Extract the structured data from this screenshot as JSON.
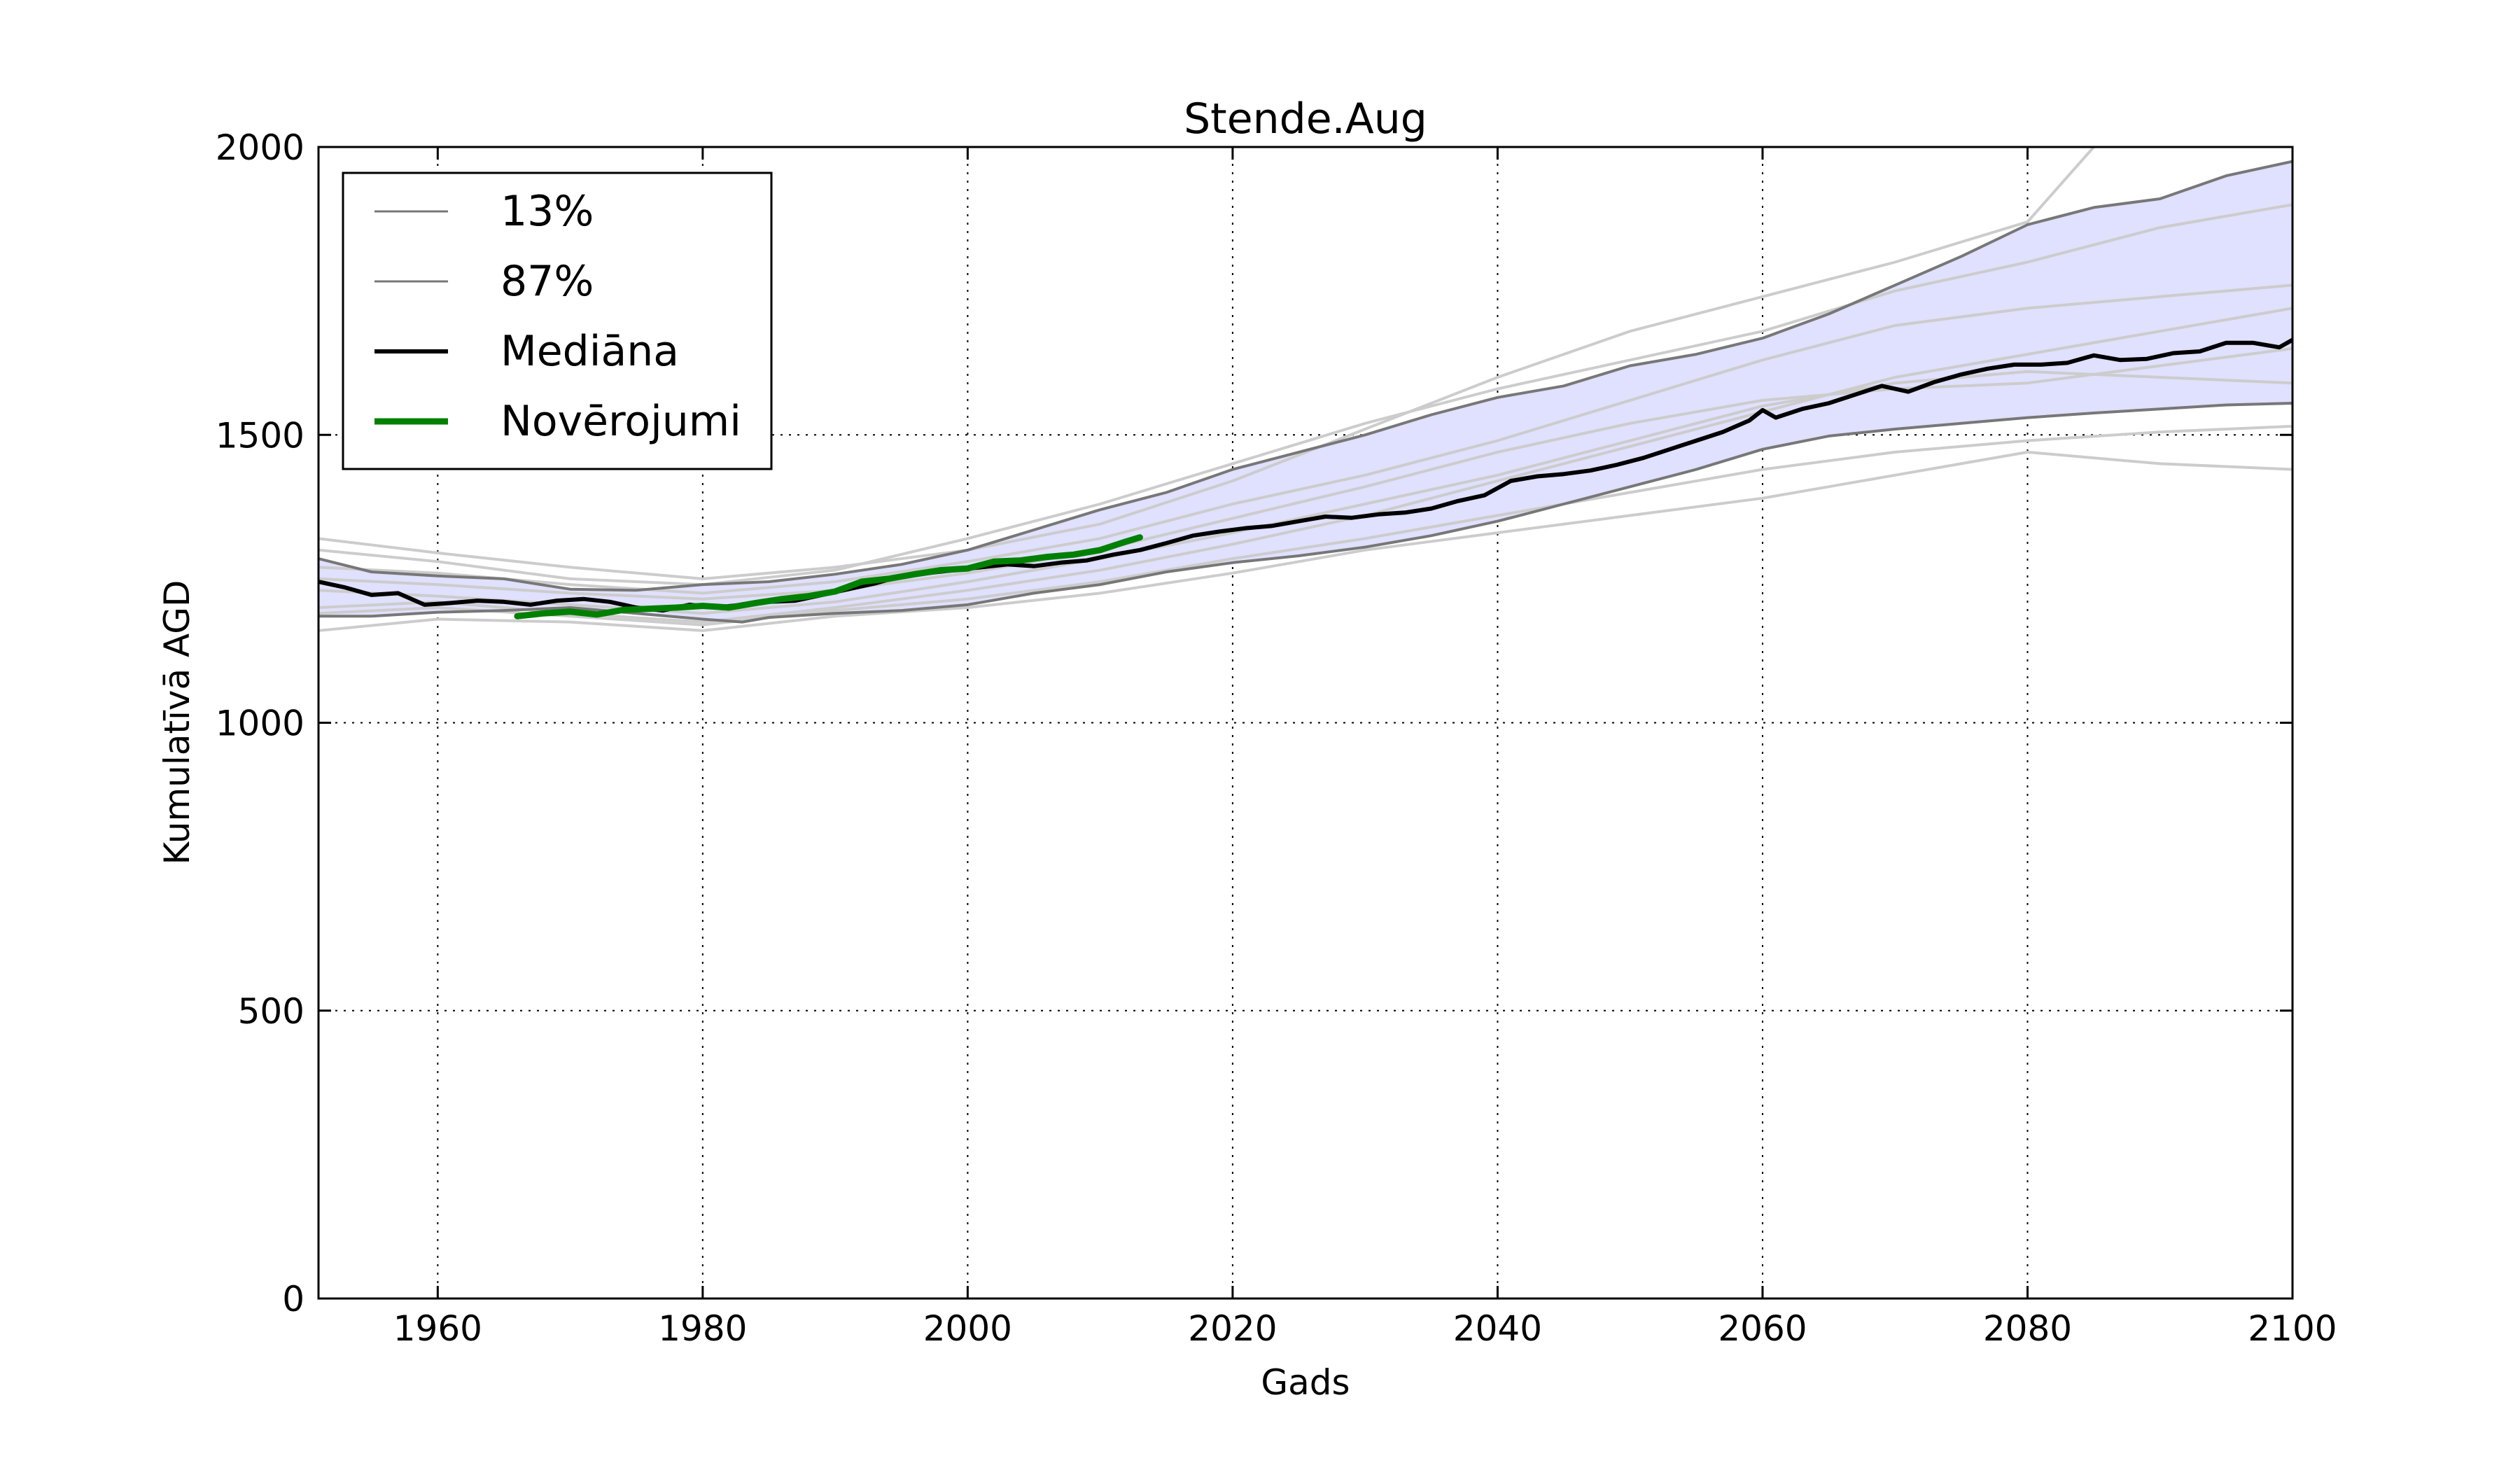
{
  "chart_data": {
    "type": "line",
    "title": "Stende.Aug",
    "xlabel": "Gads",
    "ylabel": "Kumulatīvā AGD",
    "xlim": [
      1951,
      2100
    ],
    "ylim": [
      0,
      2000
    ],
    "x_ticks": [
      1960,
      1980,
      2000,
      2020,
      2040,
      2060,
      2080,
      2100
    ],
    "y_ticks": [
      0,
      500,
      1000,
      1500,
      2000
    ],
    "grid": true,
    "legend_position": "upper-left",
    "band_color": "#e0e0ff",
    "series": [
      {
        "name": "13%",
        "color": "#777777",
        "points": [
          [
            1951,
            1185
          ],
          [
            1955,
            1185
          ],
          [
            1960,
            1192
          ],
          [
            1965,
            1195
          ],
          [
            1970,
            1200
          ],
          [
            1975,
            1190
          ],
          [
            1980,
            1180
          ],
          [
            1983,
            1175
          ],
          [
            1985,
            1183
          ],
          [
            1990,
            1190
          ],
          [
            1995,
            1195
          ],
          [
            2000,
            1205
          ],
          [
            2005,
            1225
          ],
          [
            2010,
            1240
          ],
          [
            2015,
            1262
          ],
          [
            2020,
            1278
          ],
          [
            2025,
            1290
          ],
          [
            2030,
            1305
          ],
          [
            2035,
            1325
          ],
          [
            2040,
            1350
          ],
          [
            2045,
            1380
          ],
          [
            2050,
            1410
          ],
          [
            2055,
            1440
          ],
          [
            2060,
            1475
          ],
          [
            2065,
            1498
          ],
          [
            2070,
            1510
          ],
          [
            2075,
            1520
          ],
          [
            2080,
            1530
          ],
          [
            2085,
            1538
          ],
          [
            2090,
            1545
          ],
          [
            2095,
            1552
          ],
          [
            2100,
            1555
          ]
        ]
      },
      {
        "name": "87%",
        "color": "#777777",
        "points": [
          [
            1951,
            1285
          ],
          [
            1955,
            1262
          ],
          [
            1960,
            1255
          ],
          [
            1965,
            1250
          ],
          [
            1970,
            1232
          ],
          [
            1975,
            1230
          ],
          [
            1980,
            1240
          ],
          [
            1985,
            1245
          ],
          [
            1990,
            1258
          ],
          [
            1995,
            1275
          ],
          [
            2000,
            1300
          ],
          [
            2005,
            1335
          ],
          [
            2010,
            1370
          ],
          [
            2015,
            1400
          ],
          [
            2020,
            1440
          ],
          [
            2025,
            1470
          ],
          [
            2030,
            1500
          ],
          [
            2035,
            1535
          ],
          [
            2040,
            1565
          ],
          [
            2045,
            1585
          ],
          [
            2050,
            1620
          ],
          [
            2055,
            1640
          ],
          [
            2060,
            1668
          ],
          [
            2065,
            1710
          ],
          [
            2070,
            1760
          ],
          [
            2075,
            1810
          ],
          [
            2080,
            1865
          ],
          [
            2085,
            1895
          ],
          [
            2090,
            1910
          ],
          [
            2095,
            1950
          ],
          [
            2100,
            1975
          ]
        ]
      },
      {
        "name": "Mediāna",
        "color": "#000000",
        "points": [
          [
            1951,
            1245
          ],
          [
            1953,
            1235
          ],
          [
            1955,
            1222
          ],
          [
            1957,
            1225
          ],
          [
            1959,
            1205
          ],
          [
            1961,
            1208
          ],
          [
            1963,
            1212
          ],
          [
            1965,
            1210
          ],
          [
            1967,
            1205
          ],
          [
            1969,
            1212
          ],
          [
            1971,
            1215
          ],
          [
            1973,
            1210
          ],
          [
            1975,
            1200
          ],
          [
            1977,
            1195
          ],
          [
            1979,
            1205
          ],
          [
            1981,
            1200
          ],
          [
            1983,
            1205
          ],
          [
            1985,
            1210
          ],
          [
            1987,
            1212
          ],
          [
            1989,
            1222
          ],
          [
            1991,
            1232
          ],
          [
            1993,
            1242
          ],
          [
            1995,
            1255
          ],
          [
            1997,
            1260
          ],
          [
            1999,
            1265
          ],
          [
            2001,
            1270
          ],
          [
            2003,
            1275
          ],
          [
            2005,
            1272
          ],
          [
            2007,
            1278
          ],
          [
            2009,
            1282
          ],
          [
            2011,
            1292
          ],
          [
            2013,
            1300
          ],
          [
            2015,
            1312
          ],
          [
            2017,
            1325
          ],
          [
            2019,
            1332
          ],
          [
            2021,
            1338
          ],
          [
            2023,
            1342
          ],
          [
            2025,
            1350
          ],
          [
            2027,
            1358
          ],
          [
            2029,
            1356
          ],
          [
            2031,
            1362
          ],
          [
            2033,
            1365
          ],
          [
            2035,
            1372
          ],
          [
            2037,
            1385
          ],
          [
            2039,
            1395
          ],
          [
            2041,
            1420
          ],
          [
            2043,
            1428
          ],
          [
            2045,
            1432
          ],
          [
            2047,
            1438
          ],
          [
            2049,
            1448
          ],
          [
            2051,
            1460
          ],
          [
            2053,
            1475
          ],
          [
            2055,
            1490
          ],
          [
            2057,
            1505
          ],
          [
            2059,
            1525
          ],
          [
            2060,
            1543
          ],
          [
            2061,
            1530
          ],
          [
            2063,
            1545
          ],
          [
            2065,
            1555
          ],
          [
            2067,
            1570
          ],
          [
            2069,
            1585
          ],
          [
            2071,
            1575
          ],
          [
            2073,
            1592
          ],
          [
            2075,
            1605
          ],
          [
            2077,
            1615
          ],
          [
            2079,
            1622
          ],
          [
            2081,
            1622
          ],
          [
            2083,
            1625
          ],
          [
            2085,
            1638
          ],
          [
            2087,
            1630
          ],
          [
            2089,
            1632
          ],
          [
            2091,
            1642
          ],
          [
            2093,
            1645
          ],
          [
            2095,
            1660
          ],
          [
            2097,
            1660
          ],
          [
            2099,
            1652
          ],
          [
            2100,
            1665
          ]
        ]
      },
      {
        "name": "Novērojumi",
        "color": "#008000",
        "points": [
          [
            1966,
            1185
          ],
          [
            1968,
            1190
          ],
          [
            1970,
            1193
          ],
          [
            1972,
            1188
          ],
          [
            1974,
            1196
          ],
          [
            1976,
            1198
          ],
          [
            1978,
            1200
          ],
          [
            1980,
            1203
          ],
          [
            1982,
            1200
          ],
          [
            1984,
            1208
          ],
          [
            1986,
            1215
          ],
          [
            1988,
            1220
          ],
          [
            1990,
            1228
          ],
          [
            1992,
            1245
          ],
          [
            1994,
            1250
          ],
          [
            1996,
            1258
          ],
          [
            1998,
            1265
          ],
          [
            2000,
            1268
          ],
          [
            2002,
            1280
          ],
          [
            2004,
            1282
          ],
          [
            2006,
            1288
          ],
          [
            2008,
            1292
          ],
          [
            2010,
            1300
          ],
          [
            2012,
            1315
          ],
          [
            2013,
            1322
          ]
        ]
      }
    ],
    "ensemble_members": [
      {
        "color": "#cccccc",
        "points": [
          [
            1951,
            1320
          ],
          [
            1960,
            1295
          ],
          [
            1970,
            1270
          ],
          [
            1980,
            1250
          ],
          [
            1990,
            1270
          ],
          [
            2000,
            1300
          ],
          [
            2010,
            1345
          ],
          [
            2020,
            1420
          ],
          [
            2030,
            1510
          ],
          [
            2040,
            1600
          ],
          [
            2050,
            1680
          ],
          [
            2060,
            1740
          ],
          [
            2070,
            1800
          ],
          [
            2080,
            1870
          ],
          [
            2085,
            2000
          ]
        ]
      },
      {
        "color": "#cccccc",
        "points": [
          [
            1951,
            1300
          ],
          [
            1960,
            1280
          ],
          [
            1970,
            1250
          ],
          [
            1980,
            1240
          ],
          [
            1990,
            1265
          ],
          [
            2000,
            1320
          ],
          [
            2010,
            1380
          ],
          [
            2020,
            1450
          ],
          [
            2030,
            1520
          ],
          [
            2040,
            1580
          ],
          [
            2050,
            1630
          ],
          [
            2060,
            1680
          ],
          [
            2070,
            1750
          ],
          [
            2080,
            1800
          ],
          [
            2090,
            1860
          ],
          [
            2100,
            1900
          ]
        ]
      },
      {
        "color": "#cccccc",
        "points": [
          [
            1951,
            1160
          ],
          [
            1960,
            1180
          ],
          [
            1970,
            1175
          ],
          [
            1980,
            1160
          ],
          [
            1990,
            1185
          ],
          [
            2000,
            1200
          ],
          [
            2010,
            1225
          ],
          [
            2020,
            1260
          ],
          [
            2030,
            1300
          ],
          [
            2040,
            1330
          ],
          [
            2050,
            1360
          ],
          [
            2060,
            1390
          ],
          [
            2070,
            1430
          ],
          [
            2080,
            1470
          ],
          [
            2090,
            1450
          ],
          [
            2100,
            1440
          ]
        ]
      },
      {
        "color": "#cccccc",
        "points": [
          [
            1951,
            1200
          ],
          [
            1960,
            1210
          ],
          [
            1970,
            1190
          ],
          [
            1980,
            1175
          ],
          [
            1990,
            1200
          ],
          [
            2000,
            1230
          ],
          [
            2010,
            1265
          ],
          [
            2020,
            1310
          ],
          [
            2030,
            1360
          ],
          [
            2040,
            1420
          ],
          [
            2050,
            1480
          ],
          [
            2060,
            1540
          ],
          [
            2070,
            1600
          ],
          [
            2080,
            1640
          ],
          [
            2090,
            1680
          ],
          [
            2100,
            1720
          ]
        ]
      },
      {
        "color": "#cccccc",
        "points": [
          [
            1951,
            1230
          ],
          [
            1960,
            1220
          ],
          [
            1970,
            1205
          ],
          [
            1980,
            1190
          ],
          [
            1990,
            1210
          ],
          [
            2000,
            1245
          ],
          [
            2010,
            1285
          ],
          [
            2020,
            1330
          ],
          [
            2030,
            1380
          ],
          [
            2040,
            1430
          ],
          [
            2050,
            1490
          ],
          [
            2060,
            1550
          ],
          [
            2070,
            1590
          ],
          [
            2080,
            1610
          ],
          [
            2090,
            1600
          ],
          [
            2100,
            1590
          ]
        ]
      },
      {
        "color": "#cccccc",
        "points": [
          [
            1951,
            1250
          ],
          [
            1960,
            1240
          ],
          [
            1970,
            1225
          ],
          [
            1980,
            1215
          ],
          [
            1990,
            1230
          ],
          [
            2000,
            1260
          ],
          [
            2010,
            1300
          ],
          [
            2020,
            1355
          ],
          [
            2030,
            1410
          ],
          [
            2040,
            1470
          ],
          [
            2050,
            1520
          ],
          [
            2060,
            1560
          ],
          [
            2070,
            1580
          ],
          [
            2080,
            1590
          ],
          [
            2090,
            1620
          ],
          [
            2100,
            1650
          ]
        ]
      },
      {
        "color": "#cccccc",
        "points": [
          [
            1951,
            1190
          ],
          [
            1960,
            1200
          ],
          [
            1970,
            1185
          ],
          [
            1980,
            1170
          ],
          [
            1990,
            1195
          ],
          [
            2000,
            1215
          ],
          [
            2010,
            1245
          ],
          [
            2020,
            1285
          ],
          [
            2030,
            1320
          ],
          [
            2040,
            1360
          ],
          [
            2050,
            1400
          ],
          [
            2060,
            1440
          ],
          [
            2070,
            1470
          ],
          [
            2080,
            1490
          ],
          [
            2090,
            1505
          ],
          [
            2100,
            1515
          ]
        ]
      },
      {
        "color": "#cccccc",
        "points": [
          [
            1951,
            1270
          ],
          [
            1960,
            1260
          ],
          [
            1970,
            1240
          ],
          [
            1980,
            1225
          ],
          [
            1990,
            1245
          ],
          [
            2000,
            1280
          ],
          [
            2010,
            1320
          ],
          [
            2020,
            1380
          ],
          [
            2030,
            1430
          ],
          [
            2040,
            1490
          ],
          [
            2050,
            1560
          ],
          [
            2060,
            1630
          ],
          [
            2070,
            1690
          ],
          [
            2080,
            1720
          ],
          [
            2090,
            1740
          ],
          [
            2100,
            1760
          ]
        ]
      }
    ]
  }
}
